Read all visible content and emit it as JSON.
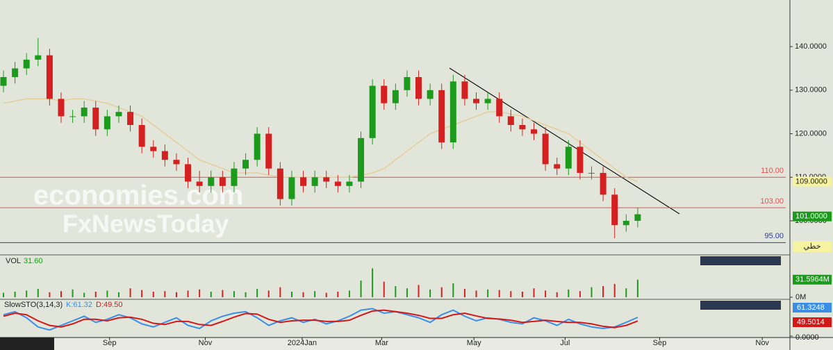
{
  "chart_data": [
    {
      "type": "candlestick",
      "open": [
        131,
        133,
        135,
        137,
        138,
        128,
        124,
        124,
        126,
        121,
        124,
        125,
        122,
        117,
        116,
        114,
        113,
        109,
        108,
        110,
        108,
        112,
        114,
        120,
        112,
        105,
        110,
        108,
        110,
        109,
        108,
        109,
        119,
        131,
        127,
        130,
        133,
        128,
        130,
        118,
        132,
        128,
        127,
        128,
        124,
        122,
        121,
        120,
        113,
        112,
        117,
        111,
        111,
        106,
        99,
        100
      ],
      "high": [
        134.5,
        136.5,
        138.5,
        142,
        139.5,
        129.5,
        125.5,
        127.5,
        127.5,
        125.5,
        126.5,
        126.5,
        123.5,
        118.5,
        117.5,
        115.5,
        114.5,
        111.5,
        111.5,
        111.5,
        113.5,
        115.5,
        121.5,
        121.5,
        113.5,
        111.5,
        111.5,
        111.5,
        111.5,
        110.5,
        110.5,
        120.5,
        132.5,
        132.5,
        131.5,
        134.5,
        134.5,
        131.5,
        131.5,
        133.5,
        133.5,
        129.5,
        129.5,
        129.5,
        125.5,
        123.5,
        122.5,
        121.5,
        114.5,
        118.5,
        118.5,
        112.5,
        112.5,
        107.5,
        101.5,
        103
      ],
      "low": [
        129.5,
        131.5,
        133.5,
        135.5,
        126.5,
        122.5,
        122.5,
        122.5,
        119.5,
        119.5,
        122.5,
        120.5,
        115.5,
        114.5,
        112.5,
        111.5,
        107.5,
        106.5,
        106.5,
        106.5,
        106.5,
        110.5,
        112.5,
        110.5,
        103.5,
        103.5,
        106.5,
        106.5,
        107.5,
        106.5,
        106.5,
        107.5,
        117.5,
        125.5,
        125.5,
        128.5,
        126.5,
        126.5,
        116.5,
        116.5,
        126.5,
        125.5,
        125.5,
        122.5,
        120.5,
        119.5,
        118.5,
        111.5,
        110.5,
        110.5,
        109.5,
        109.5,
        104.5,
        96,
        97.5,
        98.5
      ],
      "close": [
        133,
        135,
        137,
        138,
        128,
        124,
        124,
        126,
        121,
        124,
        125,
        122,
        117,
        116,
        114,
        113,
        109,
        108,
        110,
        108,
        112,
        114,
        120,
        112,
        105,
        110,
        108,
        110,
        109,
        108,
        109,
        119,
        131,
        127,
        130,
        133,
        128,
        130,
        118,
        132,
        128,
        127,
        128,
        124,
        122,
        121,
        120,
        113,
        112,
        117,
        111,
        111,
        106,
        99,
        100,
        101.5
      ],
      "moving_average": [
        127,
        127.5,
        128,
        128,
        128,
        127.5,
        128,
        128,
        127.5,
        127,
        126,
        125,
        124,
        122,
        120,
        118,
        116,
        114,
        113,
        112,
        111,
        111,
        111,
        110.5,
        110,
        110,
        110,
        110,
        110,
        110,
        110,
        110.5,
        111,
        112,
        114,
        116,
        118,
        120,
        121,
        122,
        123,
        124,
        125,
        125,
        124.5,
        124,
        123,
        122,
        121,
        120,
        118,
        116,
        114,
        112,
        110,
        109
      ],
      "up_color": "#1c9a1c",
      "down_color": "#d42020",
      "ma_color": "#e6cc99",
      "xlim": [
        -0.3,
        68.2
      ],
      "ylim": [
        92.5,
        150.7
      ],
      "xticks": [
        {
          "value": 9.2,
          "label": "Sep"
        },
        {
          "value": 17.5,
          "label": "Nov"
        },
        {
          "value": 25.9,
          "label": "2024Jan"
        },
        {
          "value": 32.8,
          "label": "Mar"
        },
        {
          "value": 40.8,
          "label": "May"
        },
        {
          "value": 48.7,
          "label": "Jul"
        },
        {
          "value": 56.9,
          "label": "Sep"
        },
        {
          "value": 65.8,
          "label": "Nov"
        }
      ],
      "yticks": [
        {
          "value": 100,
          "label": "100.0000"
        },
        {
          "value": 110,
          "label": "110.0000"
        },
        {
          "value": 120,
          "label": "120.0000"
        },
        {
          "value": 130,
          "label": "130.0000"
        },
        {
          "value": 140,
          "label": "140.0000"
        }
      ],
      "levels": [
        {
          "value": 110,
          "label": "110.00",
          "color": "#e05050"
        },
        {
          "value": 103,
          "label": "103.00",
          "color": "#e05050"
        },
        {
          "value": 95,
          "label": "95.00",
          "color": "#2a3a9a"
        }
      ],
      "price_labels": [
        {
          "value": 109,
          "label": "109.0000",
          "color": "#f6f3a0"
        },
        {
          "value": 101,
          "label": "101.0000",
          "color": "#1c9a1c"
        }
      ],
      "mode_button": "خطي",
      "watermark": [
        "economies.com",
        "FxNewsToday"
      ]
    },
    {
      "type": "bar",
      "title": "VOL",
      "last": "31.60",
      "values": [
        8,
        10,
        12,
        15,
        9,
        11,
        14,
        8,
        10,
        12,
        9,
        16,
        13,
        10,
        11,
        9,
        12,
        14,
        10,
        13,
        11,
        9,
        15,
        12,
        18,
        10,
        9,
        11,
        8,
        10,
        12,
        30,
        52,
        28,
        20,
        16,
        22,
        14,
        18,
        25,
        15,
        12,
        14,
        13,
        11,
        10,
        16,
        12,
        9,
        14,
        11,
        18,
        20,
        24,
        16,
        31.6
      ],
      "ylim": [
        0,
        70
      ],
      "yticks": [
        {
          "value": 0,
          "label": "0M"
        },
        {
          "value": 31.5964,
          "label": "31.5964M"
        }
      ]
    },
    {
      "type": "line",
      "title": "SlowSTO(3,14,3)",
      "ylim": [
        0,
        100
      ],
      "series": [
        {
          "name": "K:61.32",
          "color": "#3a8ee6",
          "values": [
            70,
            80,
            60,
            30,
            20,
            35,
            50,
            65,
            45,
            55,
            70,
            60,
            40,
            30,
            45,
            60,
            35,
            25,
            50,
            65,
            75,
            80,
            60,
            35,
            50,
            60,
            45,
            55,
            40,
            50,
            65,
            85,
            90,
            75,
            80,
            70,
            60,
            45,
            70,
            85,
            65,
            50,
            60,
            55,
            45,
            40,
            60,
            50,
            35,
            55,
            40,
            30,
            25,
            30,
            45,
            61.32
          ],
          "last_label": 61.3248
        },
        {
          "name": "D:49.50",
          "color": "#d41818",
          "values": [
            65,
            75,
            70,
            50,
            35,
            30,
            40,
            55,
            55,
            50,
            60,
            62,
            55,
            42,
            38,
            48,
            48,
            38,
            35,
            48,
            62,
            74,
            72,
            55,
            45,
            50,
            52,
            52,
            48,
            48,
            52,
            68,
            82,
            85,
            80,
            75,
            68,
            58,
            58,
            70,
            75,
            66,
            58,
            56,
            52,
            45,
            48,
            52,
            48,
            45,
            45,
            40,
            32,
            28,
            35,
            49.5
          ],
          "last_label": 49.5014
        }
      ],
      "yticks": [
        {
          "value": 0,
          "label": "0.0000"
        }
      ]
    }
  ]
}
